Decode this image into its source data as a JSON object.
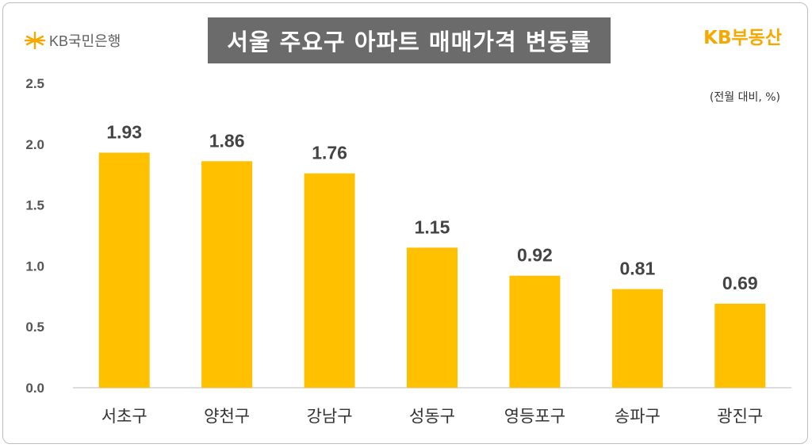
{
  "header": {
    "bank_logo_text": "KB국민은행",
    "title": "서울 주요구 아파트 매매가격 변동률",
    "brand": "KB부동산",
    "unit_note": "(전월 대비, %)"
  },
  "colors": {
    "bar": "#FFC000",
    "title_bg": "#6B6B6B",
    "brand": "#F5A800"
  },
  "icons": {
    "bank_logo": "kb-star-logo-icon"
  },
  "chart_data": {
    "type": "bar",
    "title": "서울 주요구 아파트 매매가격 변동률",
    "categories": [
      "서초구",
      "양천구",
      "강남구",
      "성동구",
      "영등포구",
      "송파구",
      "광진구"
    ],
    "values": [
      1.93,
      1.86,
      1.76,
      1.15,
      0.92,
      0.81,
      0.69
    ],
    "value_labels": [
      "1.93",
      "1.86",
      "1.76",
      "1.15",
      "0.92",
      "0.81",
      "0.69"
    ],
    "ylim": [
      0,
      2.5
    ],
    "yticks": [
      "0.0",
      "0.5",
      "1.0",
      "1.5",
      "2.0",
      "2.5"
    ],
    "ytick_values": [
      0,
      0.5,
      1.0,
      1.5,
      2.0,
      2.5
    ],
    "grid": false,
    "legend": "none"
  }
}
